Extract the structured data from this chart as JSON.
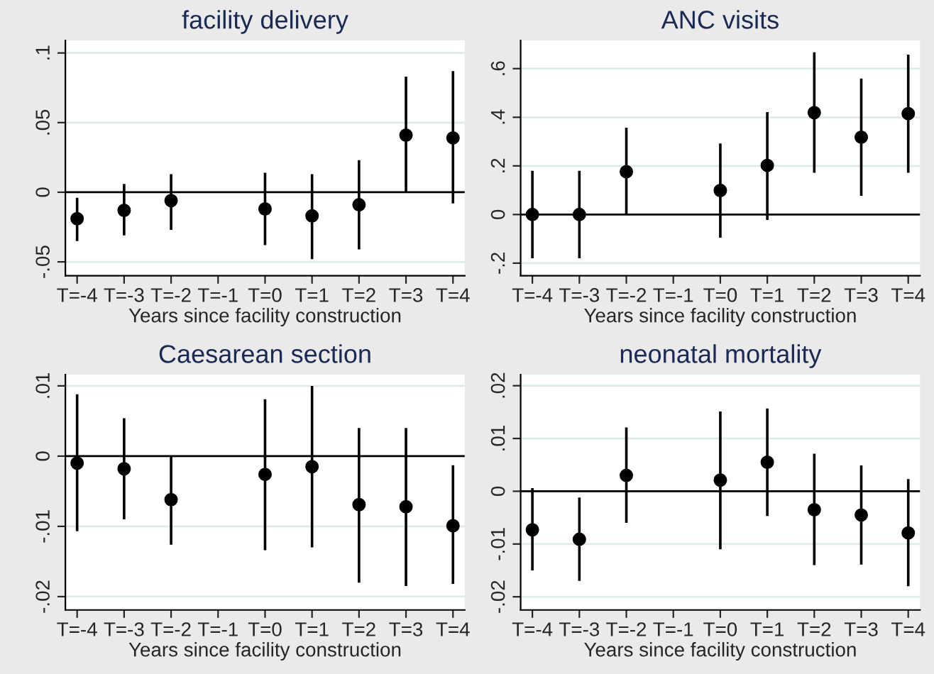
{
  "chart_data": [
    {
      "type": "scatter",
      "title": "facility delivery",
      "xlabel": "Years since facility construction",
      "categories": [
        "T=-4",
        "T=-3",
        "T=-2",
        "T=-1",
        "T=0",
        "T=1",
        "T=2",
        "T=3",
        "T=4"
      ],
      "values": [
        -0.019,
        -0.013,
        -0.006,
        null,
        -0.012,
        -0.017,
        -0.009,
        0.041,
        0.039
      ],
      "errors": [
        [
          -0.035,
          -0.004
        ],
        [
          -0.031,
          0.006
        ],
        [
          -0.027,
          0.013
        ],
        null,
        [
          -0.038,
          0.014
        ],
        [
          -0.048,
          0.013
        ],
        [
          -0.041,
          0.023
        ],
        [
          0.0,
          0.083
        ],
        [
          -0.008,
          0.087
        ]
      ],
      "color": "#000000",
      "marker": "circle",
      "ylim": [
        -0.06,
        0.109
      ],
      "yticks": [
        {
          "value": -0.05,
          "label": "-.05"
        },
        0,
        {
          "value": 0.05,
          "label": ".05"
        },
        {
          "value": 0.1,
          "label": ".1"
        }
      ],
      "grid": "y",
      "ref_lines": [
        {
          "axis": "y",
          "value": 0,
          "color": "#000000"
        }
      ]
    },
    {
      "type": "scatter",
      "title": "ANC visits",
      "xlabel": "Years since facility construction",
      "categories": [
        "T=-4",
        "T=-3",
        "T=-2",
        "T=-1",
        "T=0",
        "T=1",
        "T=2",
        "T=3",
        "T=4"
      ],
      "values": [
        0.0,
        0.0,
        0.176,
        null,
        0.099,
        0.202,
        0.419,
        0.318,
        0.415
      ],
      "errors": [
        [
          -0.18,
          0.18
        ],
        [
          -0.18,
          0.18
        ],
        [
          0.0,
          0.357
        ],
        null,
        [
          -0.095,
          0.292
        ],
        [
          -0.022,
          0.421
        ],
        [
          0.172,
          0.667
        ],
        [
          0.077,
          0.559
        ],
        [
          0.172,
          0.658
        ]
      ],
      "color": "#000000",
      "marker": "circle",
      "ylim": [
        -0.252,
        0.716
      ],
      "yticks": [
        {
          "value": -0.2,
          "label": "-.2"
        },
        0,
        {
          "value": 0.2,
          "label": ".2"
        },
        {
          "value": 0.4,
          "label": ".4"
        },
        {
          "value": 0.6,
          "label": ".6"
        }
      ],
      "grid": "y",
      "ref_lines": [
        {
          "axis": "y",
          "value": 0,
          "color": "#000000"
        }
      ]
    },
    {
      "type": "scatter",
      "title": "Caesarean section",
      "xlabel": "Years since facility construction",
      "categories": [
        "T=-4",
        "T=-3",
        "T=-2",
        "T=-1",
        "T=0",
        "T=1",
        "T=2",
        "T=3",
        "T=4"
      ],
      "values": [
        -0.001,
        -0.0018,
        -0.0062,
        null,
        -0.0026,
        -0.0015,
        -0.0069,
        -0.0072,
        -0.0099
      ],
      "errors": [
        [
          -0.0107,
          0.0088
        ],
        [
          -0.009,
          0.0054
        ],
        [
          -0.0126,
          0.0
        ],
        null,
        [
          -0.0134,
          0.0081
        ],
        [
          -0.013,
          0.01
        ],
        [
          -0.018,
          0.004
        ],
        [
          -0.0185,
          0.004
        ],
        [
          -0.0182,
          -0.0013
        ]
      ],
      "color": "#000000",
      "marker": "circle",
      "ylim": [
        -0.0219,
        0.0116
      ],
      "yticks": [
        {
          "value": -0.02,
          "label": "-.02"
        },
        {
          "value": -0.01,
          "label": "-.01"
        },
        0,
        {
          "value": 0.01,
          "label": ".01"
        }
      ],
      "grid": "y",
      "ref_lines": [
        {
          "axis": "y",
          "value": 0,
          "color": "#000000"
        }
      ]
    },
    {
      "type": "scatter",
      "title": "neonatal mortality",
      "xlabel": "Years since facility construction",
      "categories": [
        "T=-4",
        "T=-3",
        "T=-2",
        "T=-1",
        "T=0",
        "T=1",
        "T=2",
        "T=3",
        "T=4"
      ],
      "values": [
        -0.0073,
        -0.0091,
        0.003,
        null,
        0.0021,
        0.0055,
        -0.0035,
        -0.0045,
        -0.0079
      ],
      "errors": [
        [
          -0.015,
          0.0006
        ],
        [
          -0.017,
          -0.0012
        ],
        [
          -0.006,
          0.0121
        ],
        null,
        [
          -0.011,
          0.0151
        ],
        [
          -0.0047,
          0.0157
        ],
        [
          -0.014,
          0.0071
        ],
        [
          -0.0139,
          0.0049
        ],
        [
          -0.018,
          0.0023
        ]
      ],
      "color": "#000000",
      "marker": "circle",
      "ylim": [
        -0.0225,
        0.0221
      ],
      "yticks": [
        {
          "value": -0.02,
          "label": "-.02"
        },
        {
          "value": -0.01,
          "label": "-.01"
        },
        0,
        {
          "value": 0.01,
          "label": ".01"
        },
        {
          "value": 0.02,
          "label": ".02"
        }
      ],
      "grid": "y",
      "ref_lines": [
        {
          "axis": "y",
          "value": 0,
          "color": "#000000"
        }
      ]
    }
  ]
}
